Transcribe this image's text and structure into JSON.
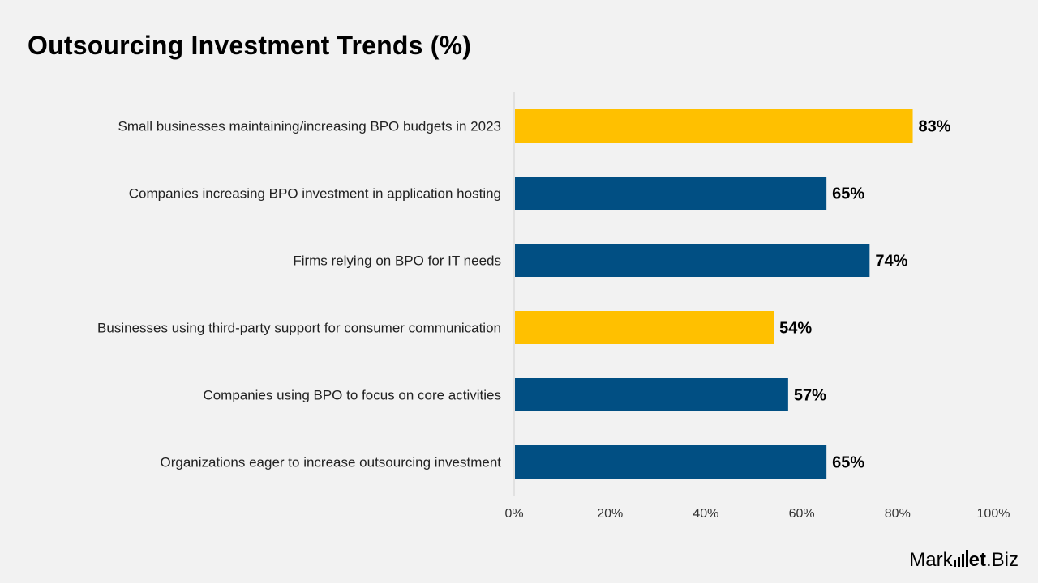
{
  "title": "Outsourcing Investment Trends (%)",
  "colors": {
    "background": "#f2f2f2",
    "highlight": "#ffc000",
    "primary": "#014f83",
    "axis": "#d0d0d0"
  },
  "chart_data": {
    "type": "bar",
    "orientation": "horizontal",
    "categories": [
      "Small businesses maintaining/increasing BPO budgets in 2023",
      "Companies increasing BPO investment in application hosting",
      "Firms relying on BPO for IT needs",
      "Businesses using third-party support for consumer communication",
      "Companies using BPO to focus on core activities",
      "Organizations eager to increase outsourcing investment"
    ],
    "values": [
      83,
      65,
      74,
      54,
      57,
      65
    ],
    "value_labels": [
      "83%",
      "65%",
      "74%",
      "54%",
      "57%",
      "65%"
    ],
    "bar_colors": [
      "#ffc000",
      "#014f83",
      "#014f83",
      "#ffc000",
      "#014f83",
      "#014f83"
    ],
    "xlim": [
      0,
      100
    ],
    "xticks": [
      0,
      20,
      40,
      60,
      80,
      100
    ],
    "xtick_labels": [
      "0%",
      "20%",
      "40%",
      "60%",
      "80%",
      "100%"
    ],
    "grid": false,
    "legend": "none"
  },
  "logo": {
    "text_before": "Mark",
    "text_strong": "et",
    "text_after": ".Biz"
  }
}
